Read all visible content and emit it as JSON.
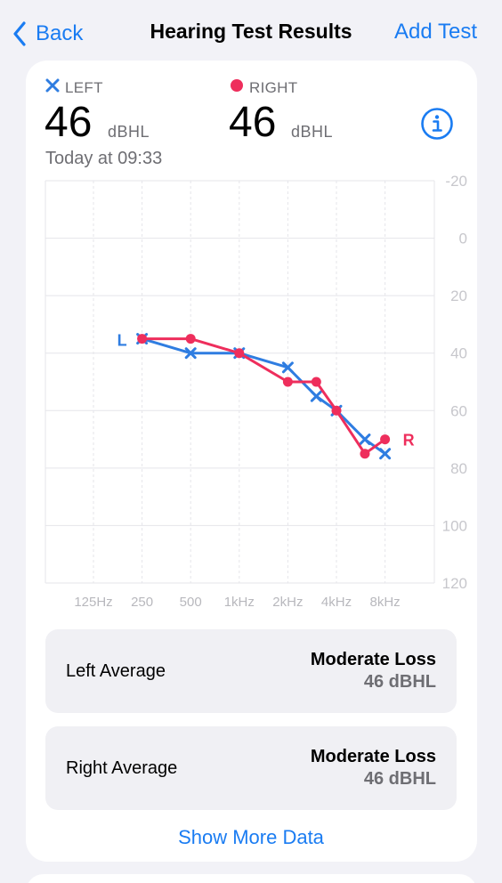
{
  "nav": {
    "back_label": "Back",
    "title": "Hearing Test Results",
    "add_label": "Add Test"
  },
  "summary": {
    "left": {
      "label": "LEFT",
      "value": "46",
      "unit": "dBHL"
    },
    "right": {
      "label": "RIGHT",
      "value": "46",
      "unit": "dBHL"
    },
    "timestamp": "Today at 09:33"
  },
  "colors": {
    "accent": "#1a7cf2",
    "left_series": "#2f7de1",
    "right_series": "#ee2e5c",
    "grid": "#e5e5ea",
    "tick": "#c7c7cc"
  },
  "chart_data": {
    "type": "line",
    "x_categories": [
      "125Hz",
      "250",
      "500",
      "1kHz",
      "2kHz",
      "4kHz",
      "8kHz"
    ],
    "y_ticks": [
      "-20",
      "0",
      "20",
      "40",
      "60",
      "80",
      "100",
      "120"
    ],
    "ylim": [
      -20,
      120
    ],
    "y_inverted": true,
    "series": [
      {
        "name": "L",
        "marker": "cross",
        "color": "#2f7de1",
        "points": [
          {
            "f": 250,
            "y": 35
          },
          {
            "f": 500,
            "y": 40
          },
          {
            "f": 1000,
            "y": 40
          },
          {
            "f": 2000,
            "y": 45
          },
          {
            "f": 3000,
            "y": 55
          },
          {
            "f": 4000,
            "y": 60
          },
          {
            "f": 6000,
            "y": 70
          },
          {
            "f": 8000,
            "y": 75
          }
        ]
      },
      {
        "name": "R",
        "marker": "dot",
        "color": "#ee2e5c",
        "points": [
          {
            "f": 250,
            "y": 35
          },
          {
            "f": 500,
            "y": 35
          },
          {
            "f": 1000,
            "y": 40
          },
          {
            "f": 2000,
            "y": 50
          },
          {
            "f": 3000,
            "y": 50
          },
          {
            "f": 4000,
            "y": 60
          },
          {
            "f": 6000,
            "y": 75
          },
          {
            "f": 8000,
            "y": 70
          }
        ]
      }
    ]
  },
  "averages": [
    {
      "label": "Left Average",
      "status": "Moderate Loss",
      "value": "46 dBHL"
    },
    {
      "label": "Right Average",
      "status": "Moderate Loss",
      "value": "46 dBHL"
    }
  ],
  "show_more_label": "Show More Data"
}
